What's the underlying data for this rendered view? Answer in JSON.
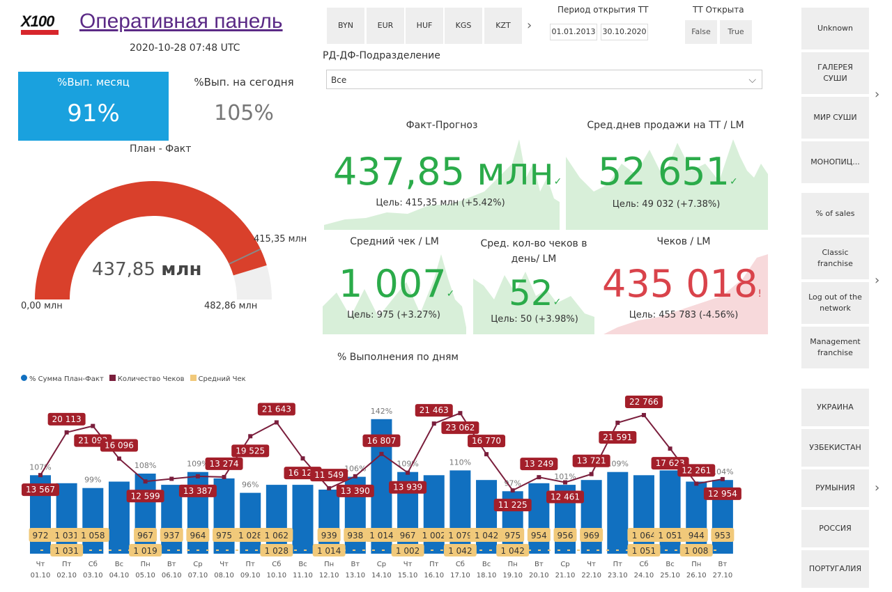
{
  "header": {
    "logo_text": "X100",
    "title": "Оперативная панель",
    "timestamp": "2020-10-28 07:48 UTC"
  },
  "kpi": {
    "month_label": "%Вып. месяц",
    "month_value": "91%",
    "today_label": "%Вып. на сегодня",
    "today_value": "105%"
  },
  "gauge": {
    "title": "План - Факт",
    "value_label": "437,85",
    "value_unit": "млн",
    "min_label": "0,00 млн",
    "max_label": "482,86 млн",
    "target_label": "415,35 млн",
    "min": 0,
    "max": 482.86,
    "value": 437.85,
    "target": 415.35,
    "fill_color": "#d9402b"
  },
  "currencies": [
    "BYN",
    "EUR",
    "HUF",
    "KGS",
    "KZT"
  ],
  "period": {
    "label": "Период открытия ТТ",
    "from": "01.01.2013",
    "to": "30.10.2020"
  },
  "tt_open": {
    "label": "ТТ Открыта",
    "options": [
      "False",
      "True"
    ]
  },
  "division": {
    "label": "РД-ДФ-Подразделение",
    "value": "Все"
  },
  "cards": [
    {
      "label": "Факт-Прогноз",
      "value": "437,85 млн",
      "target": "Цель: 415,35 млн (+5.42%)",
      "status": "good"
    },
    {
      "label": "Сред.днев продажи на ТТ / LM",
      "value": "52 651",
      "target": "Цель: 49 032 (+7.38%)",
      "status": "good"
    },
    {
      "label": "Средний чек / LM",
      "value": "1 007",
      "target": "Цель: 975 (+3.27%)",
      "status": "good"
    },
    {
      "label": "Сред. кол-во чеков в день/ LM",
      "value": "52",
      "target": "Цель: 50 (+3.98%)",
      "status": "good"
    },
    {
      "label": "Чеков / LM",
      "value": "435 018",
      "target": "Цель: 455 783 (-4.56%)",
      "status": "bad"
    }
  ],
  "right_panel": {
    "group1": [
      "Unknown",
      "ГАЛЕРЕЯ СУШИ",
      "МИР СУШИ",
      "МОНОПИЦ..."
    ],
    "group2": [
      "% of sales",
      "Classic franchise",
      "Log out of the network",
      "Management franchise"
    ],
    "group3": [
      "УКРАИНА",
      "УЗБЕКИСТАН",
      "РУМЫНИЯ",
      "РОССИЯ",
      "ПОРТУГАЛИЯ"
    ]
  },
  "colors": {
    "bar": "#1170c0",
    "line": "#7a1e3c",
    "avg": "#f1c97a",
    "good": "#2bab4a",
    "bad": "#d9434b",
    "tile": "#1aa1de"
  },
  "chart_data": {
    "type": "bar",
    "title": "% Выполнения по дням",
    "legend": [
      "% Сумма План-Факт",
      "Количество Чеков",
      "Средний Чек"
    ],
    "legend_position": "top-left",
    "weekdays": [
      "Чт",
      "Пт",
      "Сб",
      "Вс",
      "Пн",
      "Вт",
      "Ср",
      "Чт",
      "Пт",
      "Сб",
      "Вс",
      "Пн",
      "Вт",
      "Ср",
      "Чт",
      "Пт",
      "Сб",
      "Вс",
      "Пн",
      "Вт",
      "Ср",
      "Чт",
      "Пт",
      "Сб",
      "Вс",
      "Пн",
      "Вт"
    ],
    "categories": [
      "01.10",
      "02.10",
      "03.10",
      "04.10",
      "05.10",
      "06.10",
      "07.10",
      "08.10",
      "09.10",
      "10.10",
      "11.10",
      "12.10",
      "13.10",
      "14.10",
      "15.10",
      "16.10",
      "17.10",
      "18.10",
      "19.10",
      "20.10",
      "21.10",
      "22.10",
      "23.10",
      "24.10",
      "25.10",
      "26.10",
      "27.10"
    ],
    "series": [
      {
        "name": "% Сумма План-Факт",
        "values": [
          107,
          102,
          99,
          103,
          108,
          101,
          109,
          105,
          96,
          101,
          101,
          98,
          106,
          142,
          109,
          107,
          110,
          104,
          97,
          102,
          101,
          104,
          109,
          107,
          110,
          103,
          104
        ],
        "labels": [
          "107%",
          "",
          "99%",
          "",
          "108%",
          "",
          "109%",
          "",
          "96%",
          "",
          "101%",
          "",
          "106%",
          "142%",
          "109%",
          "",
          "110%",
          "",
          "97%",
          "",
          "101%",
          "",
          "109%",
          "",
          "110%",
          "",
          "104%"
        ]
      },
      {
        "name": "Количество Чеков",
        "values": [
          13567,
          20113,
          21093,
          16096,
          12599,
          13000,
          13387,
          13274,
          19525,
          21643,
          16127,
          11549,
          13390,
          16807,
          13939,
          21463,
          23062,
          16770,
          11225,
          13249,
          12461,
          13721,
          21591,
          22766,
          17623,
          12261,
          12954
        ],
        "labels": [
          "13 567",
          "20 113",
          "21 093",
          "16 096",
          "12 599",
          "",
          "13 387",
          "13 274",
          "19 525",
          "21 643",
          "16 127",
          "11 549",
          "13 390",
          "16 807",
          "13 939",
          "21 463",
          "23 062",
          "16 770",
          "11 225",
          "13 249",
          "12 461",
          "13 721",
          "21 591",
          "22 766",
          "17 623",
          "12 261",
          "12 954"
        ]
      },
      {
        "name": "Средний Чек",
        "values": [
          972,
          1031,
          1058,
          1000,
          967,
          937,
          964,
          975,
          1028,
          1062,
          1020,
          939,
          938,
          1014,
          967,
          1002,
          1079,
          1042,
          975,
          954,
          956,
          969,
          1000,
          1064,
          1051,
          944,
          953
        ],
        "labels": [
          "972",
          "1 031",
          "1 058",
          "",
          "967",
          "937",
          "964",
          "975",
          "1 028",
          "1 062",
          "",
          "939",
          "938",
          "1 014",
          "967",
          "1 002",
          "1 079",
          "1 042",
          "975",
          "954",
          "956",
          "969",
          "",
          "1 064",
          "1 051",
          "944",
          "953"
        ],
        "low_labels": [
          "",
          "1 031",
          "",
          "",
          "1 019",
          "",
          "",
          "",
          "",
          "1 028",
          "",
          "1 014",
          "",
          "",
          "1 002",
          "",
          "1 042",
          "",
          "1 042",
          "",
          "",
          "",
          "",
          "1 051",
          "",
          "1 008",
          ""
        ]
      }
    ]
  }
}
